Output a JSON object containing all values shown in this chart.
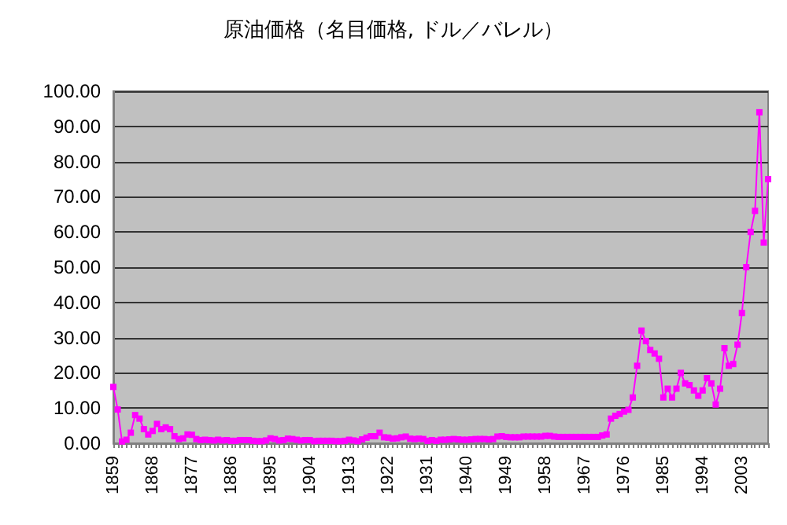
{
  "chart_data": {
    "type": "line",
    "title": "原油価格（名目価格, ドル／バレル）",
    "categories": [
      "1859",
      null,
      null,
      null,
      null,
      null,
      null,
      null,
      null,
      "1868",
      null,
      null,
      null,
      null,
      null,
      null,
      null,
      null,
      "1877",
      null,
      null,
      null,
      null,
      null,
      null,
      null,
      null,
      "1886",
      null,
      null,
      null,
      null,
      null,
      null,
      null,
      null,
      "1895",
      null,
      null,
      null,
      null,
      null,
      null,
      null,
      null,
      "1904",
      null,
      null,
      null,
      null,
      null,
      null,
      null,
      null,
      "1913",
      null,
      null,
      null,
      null,
      null,
      null,
      null,
      null,
      "1922",
      null,
      null,
      null,
      null,
      null,
      null,
      null,
      null,
      "1931",
      null,
      null,
      null,
      null,
      null,
      null,
      null,
      null,
      "1940",
      null,
      null,
      null,
      null,
      null,
      null,
      null,
      null,
      "1949",
      null,
      null,
      null,
      null,
      null,
      null,
      null,
      null,
      "1958",
      null,
      null,
      null,
      null,
      null,
      null,
      null,
      null,
      "1967",
      null,
      null,
      null,
      null,
      null,
      null,
      null,
      null,
      "1976",
      null,
      null,
      null,
      null,
      null,
      null,
      null,
      null,
      "1985",
      null,
      null,
      null,
      null,
      null,
      null,
      null,
      null,
      "1994",
      null,
      null,
      null,
      null,
      null,
      null,
      null,
      null,
      "2003",
      null,
      null,
      null,
      null,
      null,
      null
    ],
    "series": [
      {
        "color": "#ff00ff",
        "values": [
          16,
          9.6,
          0.5,
          1,
          3,
          8,
          7,
          4,
          2.5,
          3.5,
          5.5,
          4,
          4.5,
          4,
          2,
          1.2,
          1.4,
          2.5,
          2.4,
          1.2,
          0.9,
          1,
          0.9,
          0.8,
          1,
          0.8,
          0.9,
          0.7,
          0.7,
          0.9,
          0.9,
          0.9,
          0.7,
          0.6,
          0.6,
          0.8,
          1.4,
          1.2,
          0.8,
          0.9,
          1.3,
          1.2,
          1,
          0.8,
          0.9,
          0.9,
          0.6,
          0.7,
          0.7,
          0.7,
          0.7,
          0.6,
          0.6,
          0.7,
          1,
          0.8,
          0.6,
          1.1,
          1.6,
          2,
          2,
          3,
          1.7,
          1.6,
          1.3,
          1.4,
          1.7,
          1.9,
          1.3,
          1.2,
          1.3,
          1.2,
          0.7,
          0.9,
          0.7,
          1,
          1,
          1.1,
          1.2,
          1.1,
          1,
          1,
          1.1,
          1.2,
          1.2,
          1.2,
          1.1,
          1.2,
          1.9,
          2,
          1.8,
          1.7,
          1.7,
          1.7,
          1.9,
          1.9,
          1.9,
          1.9,
          1.9,
          2.1,
          2.1,
          1.9,
          1.8,
          1.8,
          1.8,
          1.8,
          1.8,
          1.8,
          1.8,
          1.8,
          1.8,
          1.8,
          2.2,
          2.5,
          7,
          7.8,
          8.3,
          9,
          9.5,
          13,
          22,
          32,
          29,
          26.5,
          25.5,
          24,
          13,
          15.5,
          13,
          15.5,
          20,
          17,
          16.5,
          15,
          13.5,
          15,
          18.5,
          17,
          11,
          15.5,
          27,
          22,
          22.5,
          28,
          37,
          50,
          60,
          66,
          94,
          57,
          75
        ]
      }
    ],
    "ylim": [
      0,
      100
    ],
    "yticks": [
      {
        "value": 0,
        "label": "0.00"
      },
      {
        "value": 10,
        "label": "10.00"
      },
      {
        "value": 20,
        "label": "20.00"
      },
      {
        "value": 30,
        "label": "30.00"
      },
      {
        "value": 40,
        "label": "40.00"
      },
      {
        "value": 50,
        "label": "50.00"
      },
      {
        "value": 60,
        "label": "60.00"
      },
      {
        "value": 70,
        "label": "70.00"
      },
      {
        "value": 80,
        "label": "80.00"
      },
      {
        "value": 90,
        "label": "90.00"
      },
      {
        "value": 100,
        "label": "100.00"
      }
    ],
    "grid": "y",
    "marker": "square",
    "line_style": "solid"
  }
}
